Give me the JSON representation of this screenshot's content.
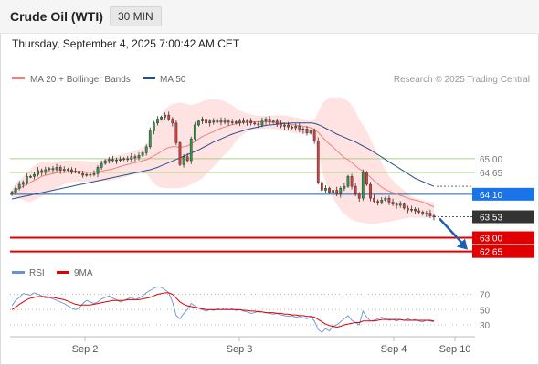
{
  "header": {
    "title": "Crude Oil (WTI)",
    "timeframe": "30 MIN",
    "datetime": "Thursday, September 4, 2025 7:00:42 AM CET"
  },
  "colors": {
    "ma20": "#f08080",
    "ma50": "#2b4f8c",
    "bollinger_fill": "#ffd9d9",
    "support": "#e00000",
    "resistance": "#a8d080",
    "pivot": "#1f5fb0",
    "price_badge_bg": "#333333",
    "pivot_badge_bg": "#1a73e8",
    "support_badge_bg": "#e00000",
    "arrow": "#1f5fb0",
    "rsi": "#6a8fd8",
    "rsi_ma": "#e00000"
  },
  "chart_data": [
    {
      "type": "candlestick",
      "legend": [
        {
          "label": "MA 20 + Bollinger Bands",
          "color": "#f08080"
        },
        {
          "label": "MA 50",
          "color": "#2b4f8c"
        }
      ],
      "legend_position": "top-left",
      "attribution": "Research © 2025 Trading Central",
      "x_ticks": [
        "Sep 2",
        "Sep 3",
        "Sep 4",
        "Sep 10"
      ],
      "ylim": [
        62.55,
        66.75
      ],
      "close": [
        64.15,
        64.25,
        64.35,
        64.4,
        64.55,
        64.55,
        64.6,
        64.7,
        64.65,
        64.72,
        64.75,
        64.72,
        64.78,
        64.7,
        64.73,
        64.72,
        64.68,
        64.68,
        64.62,
        64.58,
        64.6,
        64.6,
        64.62,
        64.78,
        64.88,
        64.95,
        64.98,
        64.95,
        64.97,
        64.98,
        65.0,
        64.98,
        65.05,
        65.02,
        65.08,
        65.15,
        65.3,
        65.7,
        65.9,
        66.0,
        66.05,
        66.1,
        66.0,
        65.9,
        65.4,
        64.85,
        65.05,
        64.95,
        65.5,
        65.85,
        65.95,
        66.0,
        65.9,
        65.95,
        65.92,
        65.98,
        65.92,
        65.95,
        65.92,
        65.93,
        65.9,
        65.95,
        65.92,
        65.95,
        65.9,
        65.88,
        65.85,
        65.95,
        66.0,
        65.92,
        65.95,
        65.88,
        65.82,
        65.85,
        65.8,
        65.78,
        65.82,
        65.72,
        65.75,
        65.65,
        65.7,
        65.45,
        64.4,
        64.2,
        64.25,
        64.15,
        64.2,
        64.1,
        64.25,
        64.3,
        64.55,
        64.3,
        64.1,
        64.0,
        64.65,
        64.35,
        64.0,
        63.92,
        63.9,
        63.95,
        64.0,
        63.9,
        63.85,
        63.82,
        63.85,
        63.75,
        63.7,
        63.72,
        63.68,
        63.65,
        63.6,
        63.62,
        63.55,
        63.53
      ],
      "ma20": [
        64.15,
        64.2,
        64.25,
        64.3,
        64.35,
        64.4,
        64.45,
        64.5,
        64.55,
        64.58,
        64.6,
        64.62,
        64.64,
        64.65,
        64.66,
        64.67,
        64.68,
        64.68,
        64.68,
        64.67,
        64.66,
        64.66,
        64.66,
        64.67,
        64.68,
        64.7,
        64.72,
        64.74,
        64.77,
        64.8,
        64.83,
        64.85,
        64.88,
        64.9,
        64.92,
        64.95,
        64.97,
        65.02,
        65.07,
        65.12,
        65.18,
        65.24,
        65.28,
        65.3,
        65.3,
        65.28,
        65.3,
        65.32,
        65.37,
        65.43,
        65.5,
        65.56,
        65.6,
        65.64,
        65.68,
        65.73,
        65.77,
        65.8,
        65.83,
        65.86,
        65.88,
        65.9,
        65.91,
        65.92,
        65.93,
        65.93,
        65.93,
        65.93,
        65.93,
        65.93,
        65.92,
        65.92,
        65.91,
        65.9,
        65.88,
        65.86,
        65.85,
        65.83,
        65.82,
        65.8,
        65.78,
        65.74,
        65.66,
        65.56,
        65.46,
        65.37,
        65.29,
        65.2,
        65.11,
        65.03,
        64.97,
        64.9,
        64.82,
        64.74,
        64.69,
        64.62,
        64.53,
        64.44,
        64.36,
        64.28,
        64.22,
        64.18,
        64.14,
        64.1,
        64.07,
        64.04,
        64.0,
        63.97,
        63.95,
        63.93,
        63.9,
        63.86,
        63.82,
        63.78
      ],
      "bb_upper": [
        64.25,
        64.35,
        64.45,
        64.55,
        64.65,
        64.75,
        64.82,
        64.88,
        64.92,
        64.92,
        64.93,
        64.93,
        64.94,
        64.94,
        64.95,
        64.95,
        64.95,
        64.95,
        64.95,
        64.94,
        64.93,
        64.92,
        64.92,
        64.93,
        64.95,
        64.98,
        65.02,
        65.05,
        65.08,
        65.1,
        65.12,
        65.14,
        65.17,
        65.2,
        65.23,
        65.28,
        65.36,
        65.55,
        65.75,
        65.95,
        66.1,
        66.25,
        66.33,
        66.38,
        66.4,
        66.42,
        66.4,
        66.38,
        66.35,
        66.38,
        66.4,
        66.45,
        66.48,
        66.5,
        66.5,
        66.5,
        66.48,
        66.45,
        66.4,
        66.35,
        66.28,
        66.22,
        66.18,
        66.15,
        66.12,
        66.1,
        66.08,
        66.08,
        66.08,
        66.08,
        66.09,
        66.1,
        66.1,
        66.1,
        66.08,
        66.06,
        66.04,
        66.02,
        66.0,
        65.98,
        65.96,
        65.97,
        66.18,
        66.38,
        66.48,
        66.55,
        66.55,
        66.55,
        66.55,
        66.52,
        66.45,
        66.35,
        66.2,
        66.0,
        65.85,
        65.7,
        65.5,
        65.3,
        65.1,
        64.9,
        64.72,
        64.55,
        64.45,
        64.35,
        64.28,
        64.2,
        64.12,
        64.05,
        64.0,
        63.98,
        63.95,
        63.92,
        63.9,
        63.9
      ],
      "bb_lower": [
        64.05,
        64.0,
        63.98,
        63.95,
        63.92,
        63.9,
        63.95,
        64.0,
        64.05,
        64.1,
        64.15,
        64.2,
        64.25,
        64.3,
        64.35,
        64.38,
        64.4,
        64.42,
        64.42,
        64.42,
        64.42,
        64.42,
        64.42,
        64.42,
        64.43,
        64.44,
        64.45,
        64.46,
        64.48,
        64.5,
        64.52,
        64.55,
        64.58,
        64.6,
        64.62,
        64.63,
        64.62,
        64.5,
        64.38,
        64.3,
        64.27,
        64.25,
        64.25,
        64.25,
        64.25,
        64.25,
        64.28,
        64.3,
        64.35,
        64.4,
        64.45,
        64.5,
        64.6,
        64.7,
        64.8,
        64.9,
        65.0,
        65.1,
        65.2,
        65.3,
        65.45,
        65.55,
        65.62,
        65.68,
        65.72,
        65.74,
        65.75,
        65.75,
        65.76,
        65.76,
        65.75,
        65.74,
        65.72,
        65.7,
        65.68,
        65.66,
        65.64,
        65.63,
        65.62,
        65.62,
        65.6,
        65.5,
        65.15,
        64.7,
        64.4,
        64.2,
        64.0,
        63.85,
        63.7,
        63.6,
        63.52,
        63.45,
        63.42,
        63.4,
        63.38,
        63.36,
        63.35,
        63.35,
        63.36,
        63.38,
        63.4,
        63.4,
        63.42,
        63.44,
        63.46,
        63.48,
        63.5,
        63.51,
        63.5,
        63.5,
        63.5,
        63.5,
        63.5,
        63.5
      ],
      "ma50": [
        63.98,
        64.0,
        64.02,
        64.04,
        64.06,
        64.08,
        64.1,
        64.12,
        64.14,
        64.16,
        64.18,
        64.2,
        64.22,
        64.24,
        64.26,
        64.28,
        64.3,
        64.32,
        64.34,
        64.36,
        64.38,
        64.4,
        64.42,
        64.44,
        64.46,
        64.48,
        64.5,
        64.52,
        64.54,
        64.56,
        64.58,
        64.6,
        64.62,
        64.64,
        64.66,
        64.68,
        64.7,
        64.72,
        64.75,
        64.78,
        64.82,
        64.86,
        64.9,
        64.94,
        64.98,
        65.02,
        65.06,
        65.1,
        65.14,
        65.18,
        65.22,
        65.27,
        65.32,
        65.37,
        65.42,
        65.46,
        65.5,
        65.54,
        65.58,
        65.62,
        65.65,
        65.68,
        65.71,
        65.74,
        65.76,
        65.78,
        65.8,
        65.82,
        65.84,
        65.85,
        65.86,
        65.87,
        65.88,
        65.89,
        65.89,
        65.9,
        65.9,
        65.9,
        65.9,
        65.9,
        65.9,
        65.89,
        65.86,
        65.82,
        65.77,
        65.72,
        65.67,
        65.62,
        65.58,
        65.54,
        65.5,
        65.46,
        65.42,
        65.37,
        65.32,
        65.27,
        65.22,
        65.16,
        65.1,
        65.04,
        64.98,
        64.92,
        64.86,
        64.8,
        64.74,
        64.68,
        64.62,
        64.56,
        64.5,
        64.46,
        64.42,
        64.38,
        64.34,
        64.3
      ],
      "levels": [
        {
          "label": "65.00",
          "value": 65.0,
          "kind": "resistance"
        },
        {
          "label": "64.65",
          "value": 64.65,
          "kind": "resistance"
        },
        {
          "label": "64.10",
          "value": 64.1,
          "kind": "pivot"
        },
        {
          "label": "63.53",
          "value": 63.53,
          "kind": "last-price"
        },
        {
          "label": "63.00",
          "value": 63.0,
          "kind": "support"
        },
        {
          "label": "62.65",
          "value": 62.65,
          "kind": "support"
        }
      ],
      "projection": {
        "from": 63.53,
        "to": 62.65,
        "direction": "down"
      }
    },
    {
      "type": "line",
      "legend": [
        {
          "label": "RSI",
          "color": "#6a8fd8"
        },
        {
          "label": "9MA",
          "color": "#e00000"
        }
      ],
      "ylim": [
        18,
        85
      ],
      "y_ticks": [
        "70",
        "50",
        "30"
      ],
      "rsi": [
        55,
        62,
        66,
        71,
        70,
        69,
        72,
        70,
        68,
        65,
        66,
        64,
        62,
        60,
        58,
        55,
        52,
        50,
        52,
        58,
        62,
        60,
        58,
        60,
        64,
        66,
        68,
        65,
        63,
        60,
        62,
        64,
        66,
        63,
        65,
        68,
        72,
        75,
        78,
        80,
        79,
        76,
        72,
        60,
        42,
        38,
        45,
        50,
        58,
        55,
        52,
        50,
        48,
        50,
        49,
        51,
        50,
        52,
        50,
        51,
        49,
        50,
        48,
        47,
        45,
        46,
        48,
        47,
        46,
        45,
        44,
        45,
        43,
        42,
        41,
        42,
        40,
        41,
        39,
        38,
        40,
        35,
        24,
        20,
        25,
        22,
        28,
        30,
        34,
        38,
        42,
        36,
        33,
        30,
        48,
        40,
        35,
        36,
        38,
        40,
        38,
        36,
        37,
        35,
        37,
        36,
        38,
        36,
        37,
        35,
        34,
        36,
        35,
        34
      ],
      "rsi_ma": [
        50,
        53,
        57,
        60,
        63,
        65,
        66,
        67,
        67,
        67,
        66,
        66,
        65,
        64,
        63,
        61,
        59,
        57,
        56,
        56,
        56,
        56,
        57,
        58,
        59,
        60,
        61,
        62,
        62,
        62,
        62,
        63,
        63,
        63,
        63,
        64,
        65,
        66,
        68,
        70,
        71,
        72,
        72,
        70,
        65,
        60,
        57,
        55,
        54,
        53,
        52,
        51,
        50,
        50,
        50,
        50,
        50,
        50,
        50,
        50,
        50,
        50,
        49,
        49,
        48,
        48,
        47,
        47,
        46,
        46,
        46,
        45,
        45,
        44,
        44,
        43,
        43,
        42,
        42,
        41,
        41,
        40,
        37,
        34,
        31,
        29,
        28,
        27,
        28,
        30,
        31,
        32,
        33,
        33,
        35,
        35,
        35,
        35,
        36,
        37,
        37,
        37,
        37,
        37,
        37,
        36,
        36,
        36,
        36,
        36,
        36,
        36,
        36,
        35
      ]
    }
  ]
}
